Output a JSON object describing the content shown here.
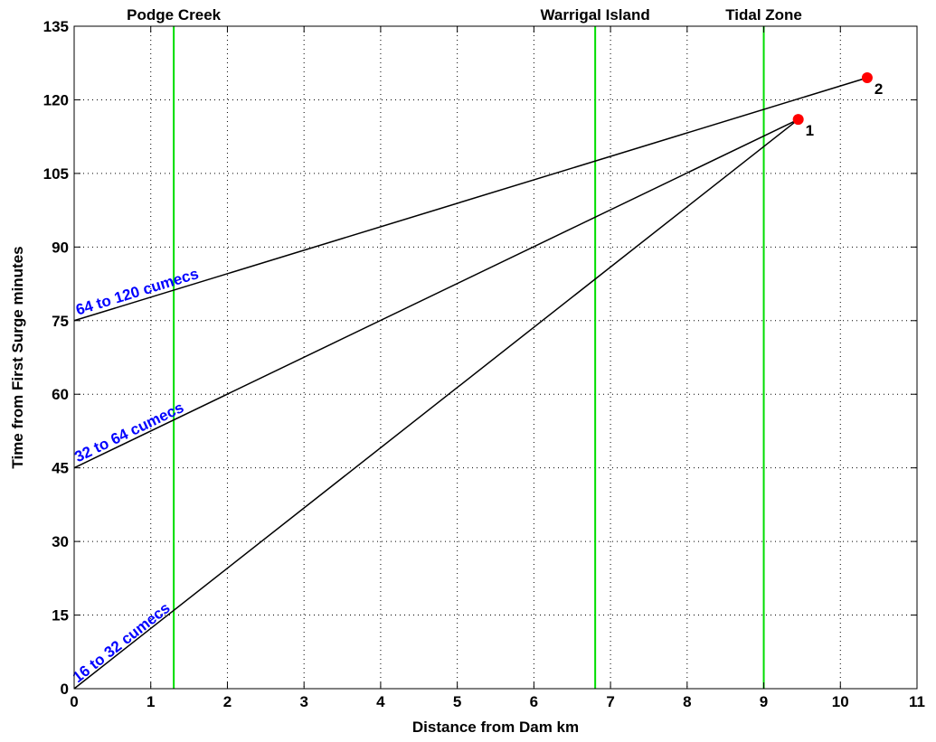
{
  "chart_data": {
    "type": "line",
    "title": "",
    "xlabel": "Distance from Dam km",
    "ylabel": "Time from First Surge minutes",
    "xlim": [
      0,
      11
    ],
    "ylim": [
      0,
      135
    ],
    "xticks": [
      0,
      1,
      2,
      3,
      4,
      5,
      6,
      7,
      8,
      9,
      10,
      11
    ],
    "yticks": [
      0,
      15,
      30,
      45,
      60,
      75,
      90,
      105,
      120,
      135
    ],
    "grid": true,
    "series": [
      {
        "name": "16 to 32 cumecs",
        "x": [
          0,
          9.45
        ],
        "y": [
          0,
          116
        ],
        "color": "#000000",
        "label_color": "#0000ff"
      },
      {
        "name": "32 to 64 cumecs",
        "x": [
          0,
          9.45
        ],
        "y": [
          45,
          116
        ],
        "color": "#000000",
        "label_color": "#0000ff"
      },
      {
        "name": "64 to 120 cumecs",
        "x": [
          0,
          10.35
        ],
        "y": [
          75,
          124.5
        ],
        "color": "#000000",
        "label_color": "#0000ff"
      }
    ],
    "vertical_markers": [
      {
        "label": "Podge Creek",
        "x": 1.3,
        "color": "#00dd00"
      },
      {
        "label": "Warrigal Island",
        "x": 6.8,
        "color": "#00dd00"
      },
      {
        "label": "Tidal Zone",
        "x": 9.0,
        "color": "#00dd00"
      }
    ],
    "points": [
      {
        "label": "1",
        "x": 9.45,
        "y": 116,
        "color": "#ff0000"
      },
      {
        "label": "2",
        "x": 10.35,
        "y": 124.5,
        "color": "#ff0000"
      }
    ]
  }
}
